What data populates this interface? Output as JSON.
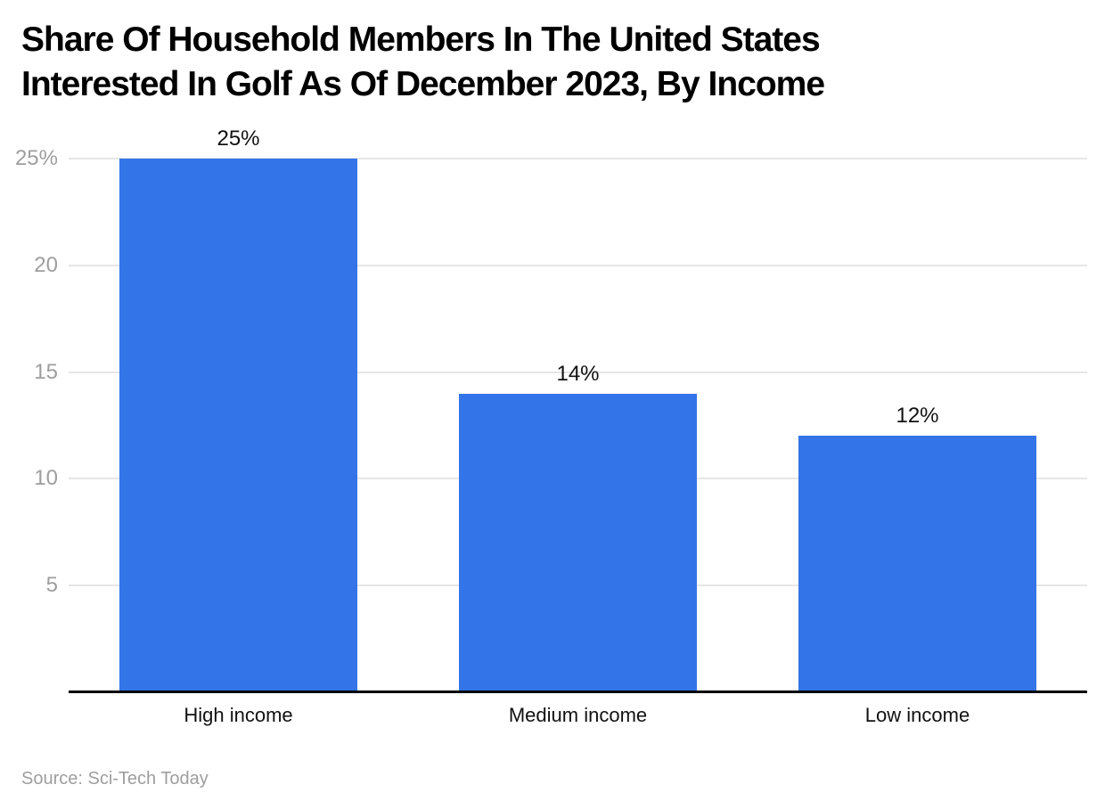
{
  "title_lines": [
    "Share Of Household Members In The United States",
    "Interested In Golf As Of December 2023, By Income"
  ],
  "source": "Source: Sci-Tech Today",
  "colors": {
    "bar": "#3374e8",
    "grid": "#e6e6e6",
    "tick_label": "#9e9e9e",
    "axis": "#000000",
    "text": "#111111",
    "source_text": "#9e9e9e",
    "background": "#ffffff"
  },
  "chart_data": {
    "type": "bar",
    "title": "Share Of Household Members In The United States Interested In Golf As Of December 2023, By Income",
    "categories": [
      "High income",
      "Medium income",
      "Low income"
    ],
    "values": [
      25,
      14,
      12
    ],
    "value_labels": [
      "25%",
      "14%",
      "12%"
    ],
    "xlabel": "",
    "ylabel": "",
    "ylim": [
      0,
      25
    ],
    "yticks": [
      5,
      10,
      15,
      20,
      25
    ],
    "ytick_labels": [
      "5",
      "10",
      "15",
      "20",
      "25%"
    ],
    "grid": true,
    "legend": false,
    "bar_color": "#3374e8",
    "source": "Source: Sci-Tech Today"
  }
}
